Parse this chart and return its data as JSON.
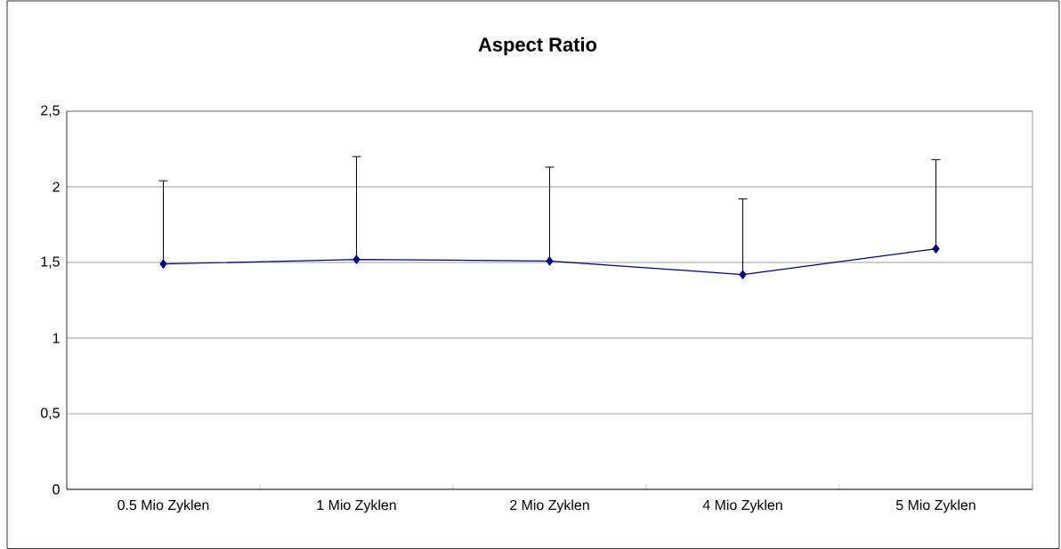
{
  "chart_data": {
    "type": "line",
    "title": "Aspect Ratio",
    "categories": [
      "0.5 Mio Zyklen",
      "1 Mio Zyklen",
      "2 Mio Zyklen",
      "4 Mio Zyklen",
      "5 Mio Zyklen"
    ],
    "series": [
      {
        "color": "#000080",
        "values": [
          1.49,
          1.52,
          1.51,
          1.42,
          1.59
        ],
        "errors": [
          [
            1.49,
            2.04
          ],
          [
            1.52,
            2.2
          ],
          [
            1.51,
            2.13
          ],
          [
            1.42,
            1.92
          ],
          [
            1.59,
            2.18
          ]
        ]
      }
    ],
    "ylim": [
      0,
      2.5
    ],
    "yticks": [
      0,
      {
        "value": 0.5,
        "label": "0,5"
      },
      1,
      {
        "value": 1.5,
        "label": "1,5"
      },
      2,
      {
        "value": 2.5,
        "label": "2,5"
      }
    ],
    "grid": "y",
    "legend": false,
    "marker": "diamond",
    "line_style": "solid"
  }
}
